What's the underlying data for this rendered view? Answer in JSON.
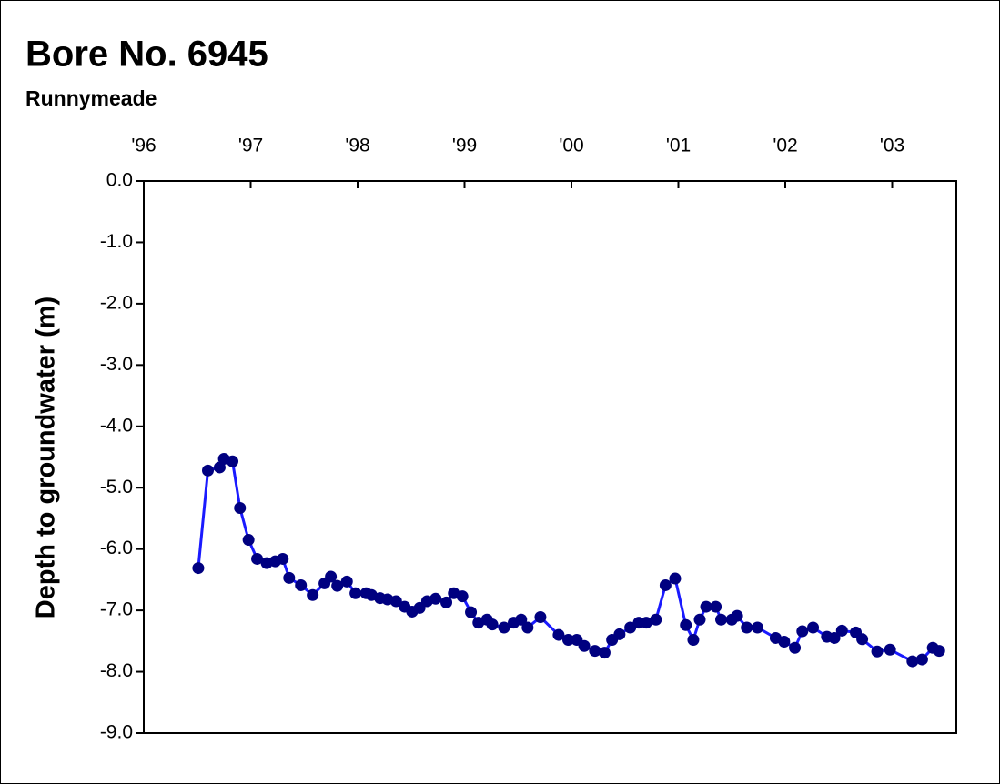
{
  "chart_data": {
    "type": "line",
    "title": "Bore No. 6945",
    "subtitle": "Runnymeade",
    "y_label": "Depth to groundwater (m)",
    "xlim": [
      1996,
      2003.6
    ],
    "xticks": [
      {
        "value": 1996,
        "label": "'96"
      },
      {
        "value": 1997,
        "label": "'97"
      },
      {
        "value": 1998,
        "label": "'98"
      },
      {
        "value": 1999,
        "label": "'99"
      },
      {
        "value": 2000,
        "label": "'00"
      },
      {
        "value": 2001,
        "label": "'01"
      },
      {
        "value": 2002,
        "label": "'02"
      },
      {
        "value": 2003,
        "label": "'03"
      }
    ],
    "ylim": [
      -9,
      0
    ],
    "yticks": [
      {
        "value": 0,
        "label": "0.0"
      },
      {
        "value": -1,
        "label": "-1.0"
      },
      {
        "value": -2,
        "label": "-2.0"
      },
      {
        "value": -3,
        "label": "-3.0"
      },
      {
        "value": -4,
        "label": "-4.0"
      },
      {
        "value": -5,
        "label": "-5.0"
      },
      {
        "value": -6,
        "label": "-6.0"
      },
      {
        "value": -7,
        "label": "-7.0"
      },
      {
        "value": -8,
        "label": "-8.0"
      },
      {
        "value": -9,
        "label": "-9.0"
      }
    ],
    "line_color": "#1a1aff",
    "marker_color": "#000080",
    "x": [
      1996.51,
      1996.6,
      1996.71,
      1996.75,
      1996.83,
      1996.9,
      1996.98,
      1997.06,
      1997.15,
      1997.23,
      1997.3,
      1997.36,
      1997.47,
      1997.58,
      1997.69,
      1997.75,
      1997.81,
      1997.9,
      1997.98,
      1998.08,
      1998.13,
      1998.21,
      1998.28,
      1998.36,
      1998.44,
      1998.51,
      1998.58,
      1998.65,
      1998.73,
      1998.83,
      1998.9,
      1998.98,
      1999.06,
      1999.13,
      1999.21,
      1999.26,
      1999.37,
      1999.46,
      1999.53,
      1999.59,
      1999.71,
      1999.88,
      1999.97,
      2000.05,
      2000.12,
      2000.22,
      2000.31,
      2000.38,
      2000.45,
      2000.55,
      2000.63,
      2000.7,
      2000.79,
      2000.88,
      2000.97,
      2001.07,
      2001.14,
      2001.2,
      2001.26,
      2001.35,
      2001.4,
      2001.5,
      2001.55,
      2001.64,
      2001.74,
      2001.91,
      2001.99,
      2002.09,
      2002.16,
      2002.26,
      2002.39,
      2002.46,
      2002.53,
      2002.66,
      2002.72,
      2002.86,
      2002.98,
      2003.19,
      2003.28,
      2003.38,
      2003.44
    ],
    "values": [
      -6.31,
      -4.72,
      -4.67,
      -4.53,
      -4.57,
      -5.33,
      -5.85,
      -6.16,
      -6.23,
      -6.2,
      -6.16,
      -6.47,
      -6.59,
      -6.75,
      -6.56,
      -6.45,
      -6.6,
      -6.53,
      -6.72,
      -6.72,
      -6.75,
      -6.8,
      -6.82,
      -6.85,
      -6.94,
      -7.02,
      -6.96,
      -6.85,
      -6.81,
      -6.87,
      -6.72,
      -6.77,
      -7.03,
      -7.2,
      -7.15,
      -7.23,
      -7.28,
      -7.2,
      -7.15,
      -7.28,
      -7.11,
      -7.4,
      -7.48,
      -7.48,
      -7.58,
      -7.66,
      -7.69,
      -7.48,
      -7.39,
      -7.28,
      -7.2,
      -7.2,
      -7.15,
      -6.59,
      -6.48,
      -7.24,
      -7.48,
      -7.15,
      -6.94,
      -6.94,
      -7.15,
      -7.15,
      -7.09,
      -7.28,
      -7.28,
      -7.45,
      -7.51,
      -7.61,
      -7.34,
      -7.28,
      -7.43,
      -7.45,
      -7.33,
      -7.36,
      -7.47,
      -7.67,
      -7.64,
      -7.83,
      -7.8,
      -7.61,
      -7.66
    ]
  }
}
